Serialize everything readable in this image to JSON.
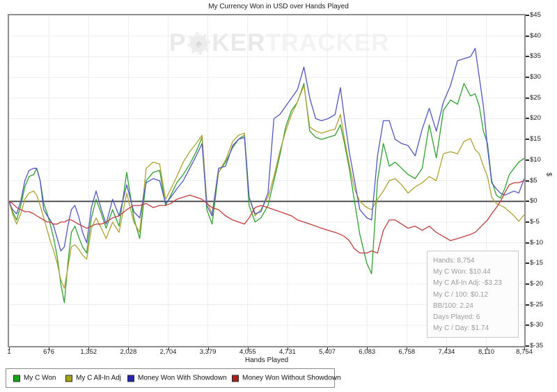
{
  "window": {
    "background": "#ffffff"
  },
  "watermark": {
    "part1": "P",
    "part2": "KER",
    "part3": "TRACKER",
    "chip_symbol": "♠"
  },
  "stats_box": {
    "lines": [
      "Hands: 8,754",
      "My C Won: $10.44",
      "My C All-In Adj: -$3.23",
      "My C / 100: $0.12",
      "BB/100: 2.24",
      "Days Played: 6",
      "My C / Day: $1.74"
    ]
  },
  "chart_data": {
    "type": "line",
    "title": "My Currency Won in USD over Hands Played",
    "xlabel": "Hands Played",
    "ylabel": "$",
    "xlim": [
      1,
      8754
    ],
    "ylim": [
      -35,
      45
    ],
    "grid": "on",
    "legend_position": "bottom-left",
    "grid_color": "#ededed",
    "zero_line_color": "#4f4f4f",
    "axis_border_color": "#8f8f8f",
    "ytick_values": [
      45,
      40,
      35,
      30,
      25,
      20,
      15,
      10,
      5,
      0,
      -5,
      -10,
      -15,
      -20,
      -25,
      -30,
      -35
    ],
    "ytick_labels": [
      "$45",
      "$40",
      "$35",
      "$30",
      "$25",
      "$20",
      "$15",
      "$10",
      "$5",
      "$0",
      "$-5",
      "$-10",
      "$-15",
      "$-20",
      "$-25",
      "$-30",
      "$-35"
    ],
    "xtick_values": [
      1,
      676,
      1352,
      2028,
      2704,
      3379,
      4055,
      4731,
      5407,
      6083,
      6758,
      7434,
      8110,
      8754
    ],
    "xtick_labels": [
      "1",
      "676",
      "1,352",
      "2,028",
      "2,704",
      "3,379",
      "4,055",
      "4,731",
      "5,407",
      "6,083",
      "6,758",
      "7,434",
      "8,110",
      "8,754"
    ],
    "x": [
      1,
      60,
      130,
      200,
      270,
      340,
      420,
      470,
      530,
      590,
      650,
      700,
      760,
      820,
      880,
      940,
      1000,
      1060,
      1120,
      1180,
      1250,
      1320,
      1400,
      1480,
      1570,
      1650,
      1760,
      1870,
      2000,
      2120,
      2220,
      2330,
      2450,
      2560,
      2660,
      2750,
      2850,
      2960,
      3070,
      3180,
      3280,
      3360,
      3450,
      3560,
      3680,
      3800,
      3900,
      4000,
      4080,
      4180,
      4280,
      4400,
      4500,
      4600,
      4700,
      4800,
      4900,
      5010,
      5110,
      5210,
      5310,
      5420,
      5540,
      5630,
      5700,
      5780,
      5870,
      5960,
      6080,
      6160,
      6260,
      6360,
      6460,
      6560,
      6670,
      6780,
      6900,
      7020,
      7140,
      7260,
      7380,
      7500,
      7620,
      7730,
      7840,
      7920,
      7990,
      8060,
      8130,
      8200,
      8280,
      8350,
      8420,
      8500,
      8580,
      8660,
      8754
    ],
    "series": [
      {
        "name": "My C Won",
        "color": "#2ea12e",
        "swatch_color": "#1ca11c",
        "values": [
          0,
          -2.5,
          -4.5,
          -1,
          3.5,
          6,
          6.5,
          8,
          5,
          -0.5,
          -3,
          -5.5,
          -9,
          -13.5,
          -20,
          -24.5,
          -15,
          -7.5,
          -6,
          -8.5,
          -11,
          -12.5,
          -4,
          0.5,
          -3,
          -6.5,
          -2,
          -6,
          7,
          -4,
          -9,
          5,
          7,
          7.5,
          -1,
          1.5,
          4.5,
          6.5,
          9,
          12,
          15.5,
          -2,
          -5.5,
          7,
          9.5,
          13,
          15,
          16,
          -1,
          -5,
          -4,
          -1,
          5,
          11,
          18,
          22,
          24,
          28.5,
          17,
          15.5,
          15,
          15.5,
          16,
          18.5,
          14,
          8,
          0,
          -8,
          -15,
          -17.5,
          5,
          14,
          8.5,
          9.5,
          8,
          6.5,
          5.5,
          8,
          18.5,
          10.5,
          22,
          24.5,
          23.5,
          28.5,
          25.5,
          26,
          23,
          17,
          14,
          5,
          1.5,
          0.8,
          3,
          6.5,
          8,
          9.5,
          10.44
        ]
      },
      {
        "name": "My C All-In Adj",
        "color": "#b0a232",
        "swatch_color": "#a3a31c",
        "values": [
          0,
          -3,
          -5.5,
          -3,
          0.5,
          2,
          2.5,
          1.5,
          -1,
          -4,
          -7,
          -9.5,
          -12,
          -15,
          -19,
          -21,
          -16,
          -11,
          -10.5,
          -11.5,
          -13,
          -14,
          -6.5,
          -4,
          -6.5,
          -9,
          -5,
          -7.5,
          2,
          -5,
          -7.5,
          8,
          9.5,
          9,
          0.5,
          3,
          6,
          9.5,
          12,
          14,
          16,
          0,
          -3,
          7,
          10,
          14.5,
          16,
          16.5,
          1,
          -3.5,
          -2,
          1,
          6,
          12,
          17,
          21,
          24,
          28,
          18,
          17,
          16.5,
          17,
          17.5,
          21,
          15,
          9,
          3,
          0,
          -1.5,
          -2,
          0.5,
          2.5,
          5,
          5.5,
          4,
          2,
          3.5,
          4.5,
          6,
          5,
          11.5,
          12,
          11.5,
          14.5,
          15.2,
          12.5,
          11.5,
          8.5,
          6,
          1,
          -0.5,
          -1,
          -1.5,
          -2.5,
          -3.5,
          -4.8,
          -3.23
        ]
      },
      {
        "name": "Money Won With Showdown",
        "color": "#5056c4",
        "swatch_color": "#2525ad",
        "values": [
          0,
          -2,
          -3,
          0,
          5,
          7.5,
          8,
          8,
          5,
          -2,
          -3.5,
          -4.5,
          -6,
          -9,
          -12,
          -11,
          -6,
          -2,
          -1,
          -3.5,
          -7.5,
          -10,
          -1.5,
          2.5,
          -2,
          -5.5,
          0.5,
          -3.5,
          4,
          -2.5,
          -4,
          4.5,
          5.5,
          5,
          -0.5,
          1,
          3,
          5,
          8,
          11,
          14,
          -1,
          -3.5,
          8,
          8.5,
          13.5,
          15,
          15.5,
          1,
          -3,
          -2.5,
          2,
          20,
          21,
          23,
          25,
          27,
          32.5,
          25,
          20,
          19.5,
          20,
          21,
          27.5,
          20,
          12,
          5,
          -2,
          -4,
          -4.5,
          11,
          19.5,
          19.5,
          15,
          14,
          13.5,
          11,
          17.5,
          22.5,
          17,
          24,
          28,
          34,
          34.5,
          35,
          37,
          30,
          23,
          13,
          4.5,
          3,
          2,
          1.5,
          2,
          2.5,
          2,
          5.5
        ]
      },
      {
        "name": "Money Won Without Showdown",
        "color": "#c23b3b",
        "swatch_color": "#ad1f1f",
        "values": [
          0,
          -0.5,
          -1.5,
          -2,
          -2.5,
          -2.5,
          -3,
          -3.5,
          -4,
          -4.5,
          -5,
          -5,
          -5.5,
          -5.5,
          -5,
          -5,
          -4.5,
          -4.5,
          -5,
          -5.5,
          -6,
          -6.5,
          -6,
          -5.5,
          -5.5,
          -5,
          -4,
          -3.5,
          -2,
          -1,
          -1,
          -0.5,
          -1.5,
          -1,
          -1,
          -0.5,
          0.5,
          1,
          1.5,
          1,
          0.5,
          -0.5,
          -1.5,
          -2,
          -3.5,
          -4.5,
          -5,
          -5.5,
          -4,
          -1.5,
          -1,
          -1.5,
          -2,
          -2.5,
          -3,
          -3.5,
          -4.5,
          -5,
          -5.5,
          -6,
          -6.5,
          -7,
          -7.5,
          -8,
          -8.5,
          -9.5,
          -11.5,
          -12.5,
          -12.5,
          -12,
          -12.5,
          -7,
          -4.5,
          -4.5,
          -5.5,
          -6.5,
          -6,
          -7,
          -6,
          -7.5,
          -8.5,
          -9.5,
          -9,
          -8.5,
          -8,
          -7.5,
          -6.5,
          -5.5,
          -4.5,
          -3,
          -1.5,
          0,
          2,
          4,
          4.5,
          4.5,
          5
        ]
      }
    ]
  }
}
